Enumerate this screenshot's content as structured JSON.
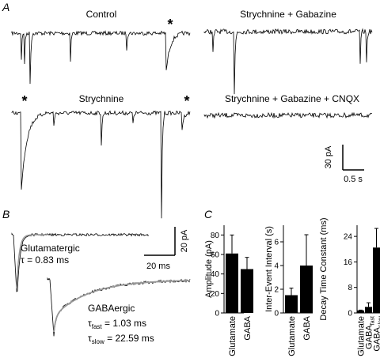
{
  "panel_letters": {
    "a": "A",
    "b": "B",
    "c": "C"
  },
  "panel_a": {
    "trace_labels": [
      "Control",
      "Strychnine + Gabazine",
      "Strychnine",
      "Strychnine + Gabazine + CNQX"
    ],
    "asterisk": "*",
    "scale_bar": {
      "y": "30 pA",
      "x": "0.5 s"
    }
  },
  "panel_b": {
    "glut_label": "Glutamatergic",
    "glut_tau": "τ = 0.83 ms",
    "gaba_label": "GABAergic",
    "gaba_tau_fast": "τ",
    "gaba_tau_fast_sub": "fast",
    "gaba_tau_fast_val": " = 1.03 ms",
    "gaba_tau_slow": "τ",
    "gaba_tau_slow_sub": "slow",
    "gaba_tau_slow_val": " = 22.59 ms",
    "scale_bar": {
      "y": "20 pA",
      "x": "20 ms"
    }
  },
  "chart_data": [
    {
      "type": "bar",
      "title": "",
      "xlabel": "",
      "ylabel": "Amplitude (pA)",
      "categories": [
        "Glutamate",
        "GABA"
      ],
      "values": [
        61,
        45
      ],
      "errors": [
        19,
        12
      ],
      "ylim": [
        0,
        90
      ],
      "yticks": [
        0,
        20,
        40,
        60,
        80
      ],
      "color": "#000000"
    },
    {
      "type": "bar",
      "title": "",
      "xlabel": "",
      "ylabel": "Inter-Event Interval (s)",
      "categories": [
        "Glutamate",
        "GABA"
      ],
      "values": [
        1.5,
        4.0
      ],
      "errors": [
        0.6,
        2.6
      ],
      "ylim": [
        0,
        7.4
      ],
      "yticks": [
        0,
        2,
        4,
        6
      ],
      "color": "#000000"
    },
    {
      "type": "bar",
      "title": "",
      "xlabel": "",
      "ylabel": "Decay Time Constant (ms)",
      "categories": [
        "Glutamate",
        "GABA",
        "GABA"
      ],
      "category_subscripts": [
        "",
        "fast",
        "slow"
      ],
      "values": [
        0.8,
        1.9,
        20.5
      ],
      "errors": [
        0.1,
        1.3,
        6.0
      ],
      "ylim": [
        0,
        27.5
      ],
      "yticks": [
        0,
        8,
        16,
        24
      ],
      "color": "#000000"
    }
  ]
}
